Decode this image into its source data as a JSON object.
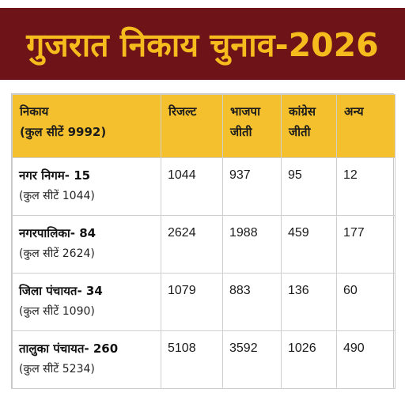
{
  "banner": {
    "title": "गुजरात निकाय चुनाव-2026"
  },
  "colors": {
    "banner_background": "#6e1419",
    "banner_text": "#f6bb1c",
    "header_background": "#f4c02e"
  },
  "table": {
    "headers": {
      "body": {
        "line1": "निकाय",
        "line2": "(कुल सीटें 9992)"
      },
      "result": {
        "line1": "रिजल्ट",
        "line2": ""
      },
      "bjp": {
        "line1": "भाजपा",
        "line2": "जीती"
      },
      "congress": {
        "line1": "कांग्रेस",
        "line2": "जीती"
      },
      "others": {
        "line1": "अन्य",
        "line2": ""
      }
    },
    "rows": [
      {
        "name": "नगर निगम- 15",
        "seats": "(कुल सीटें 1044)",
        "result": "1044",
        "bjp": "937",
        "congress": "95",
        "others": "12"
      },
      {
        "name": "नगरपालिका- 84",
        "seats": "(कुल सीटें 2624)",
        "result": "2624",
        "bjp": "1988",
        "congress": "459",
        "others": "177"
      },
      {
        "name": "जिला पंचायत- 34",
        "seats": "(कुल सीटें 1090)",
        "result": "1079",
        "bjp": "883",
        "congress": "136",
        "others": "60"
      },
      {
        "name": "तालुका पंचायत- 260",
        "seats": "(कुल सीटें 5234)",
        "result": "5108",
        "bjp": "3592",
        "congress": "1026",
        "others": "490"
      }
    ]
  }
}
